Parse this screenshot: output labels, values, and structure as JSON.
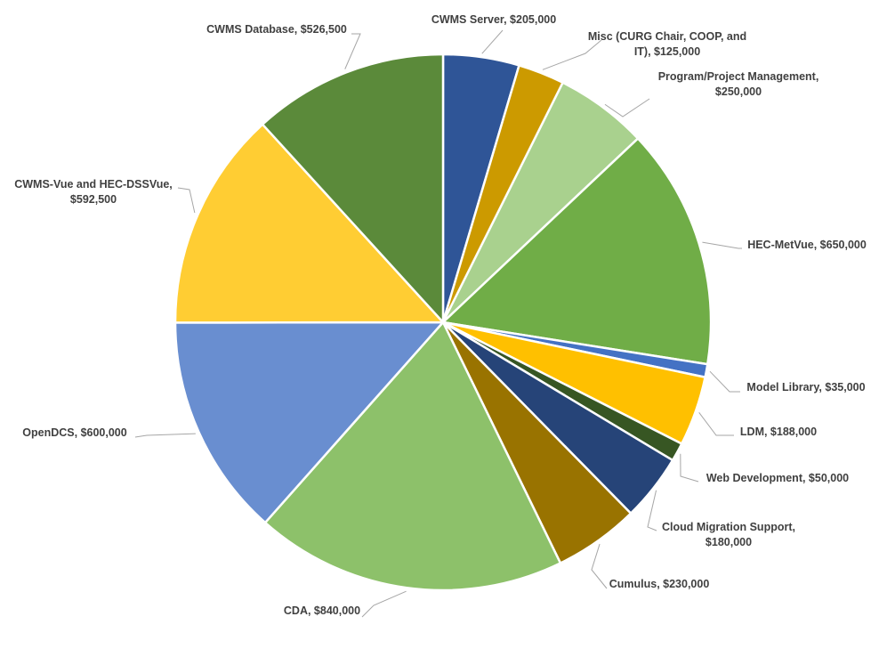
{
  "chart_data": {
    "type": "pie",
    "title": "",
    "start_angle_deg": 0,
    "direction": "clockwise",
    "slices": [
      {
        "name": "CWMS Server",
        "value": 205000,
        "label_lines": [
          "CWMS Server, $205,000"
        ],
        "color": "#2F5597"
      },
      {
        "name": "Misc (CURG Chair, COOP, and IT)",
        "value": 125000,
        "label_lines": [
          "Misc (CURG Chair, COOP, and",
          "IT), $125,000"
        ],
        "color": "#CC9A00"
      },
      {
        "name": "Program/Project Management",
        "value": 250000,
        "label_lines": [
          "Program/Project Management,",
          "$250,000"
        ],
        "color": "#A9D18E"
      },
      {
        "name": "HEC-MetVue",
        "value": 650000,
        "label_lines": [
          "HEC-MetVue, $650,000"
        ],
        "color": "#70AD47"
      },
      {
        "name": "Model Library",
        "value": 35000,
        "label_lines": [
          "Model Library, $35,000"
        ],
        "color": "#4472C4"
      },
      {
        "name": "LDM",
        "value": 188000,
        "label_lines": [
          "LDM, $188,000"
        ],
        "color": "#FFC000"
      },
      {
        "name": "Web Development",
        "value": 50000,
        "label_lines": [
          "Web Development, $50,000"
        ],
        "color": "#375623"
      },
      {
        "name": "Cloud Migration Support",
        "value": 180000,
        "label_lines": [
          "Cloud Migration Support,",
          "$180,000"
        ],
        "color": "#264478"
      },
      {
        "name": "Cumulus",
        "value": 230000,
        "label_lines": [
          "Cumulus, $230,000"
        ],
        "color": "#997300"
      },
      {
        "name": "CDA",
        "value": 840000,
        "label_lines": [
          "CDA, $840,000"
        ],
        "color": "#8DC16A"
      },
      {
        "name": "OpenDCS",
        "value": 600000,
        "label_lines": [
          "OpenDCS, $600,000"
        ],
        "color": "#698ED0"
      },
      {
        "name": "CWMS-Vue and HEC-DSSVue",
        "value": 592500,
        "label_lines": [
          "CWMS-Vue and HEC-DSSVue,",
          "$592,500"
        ],
        "color": "#FFCD33"
      },
      {
        "name": "CWMS Database",
        "value": 526500,
        "label_lines": [
          "CWMS Database, $526,500"
        ],
        "color": "#5B8A3A"
      }
    ]
  }
}
